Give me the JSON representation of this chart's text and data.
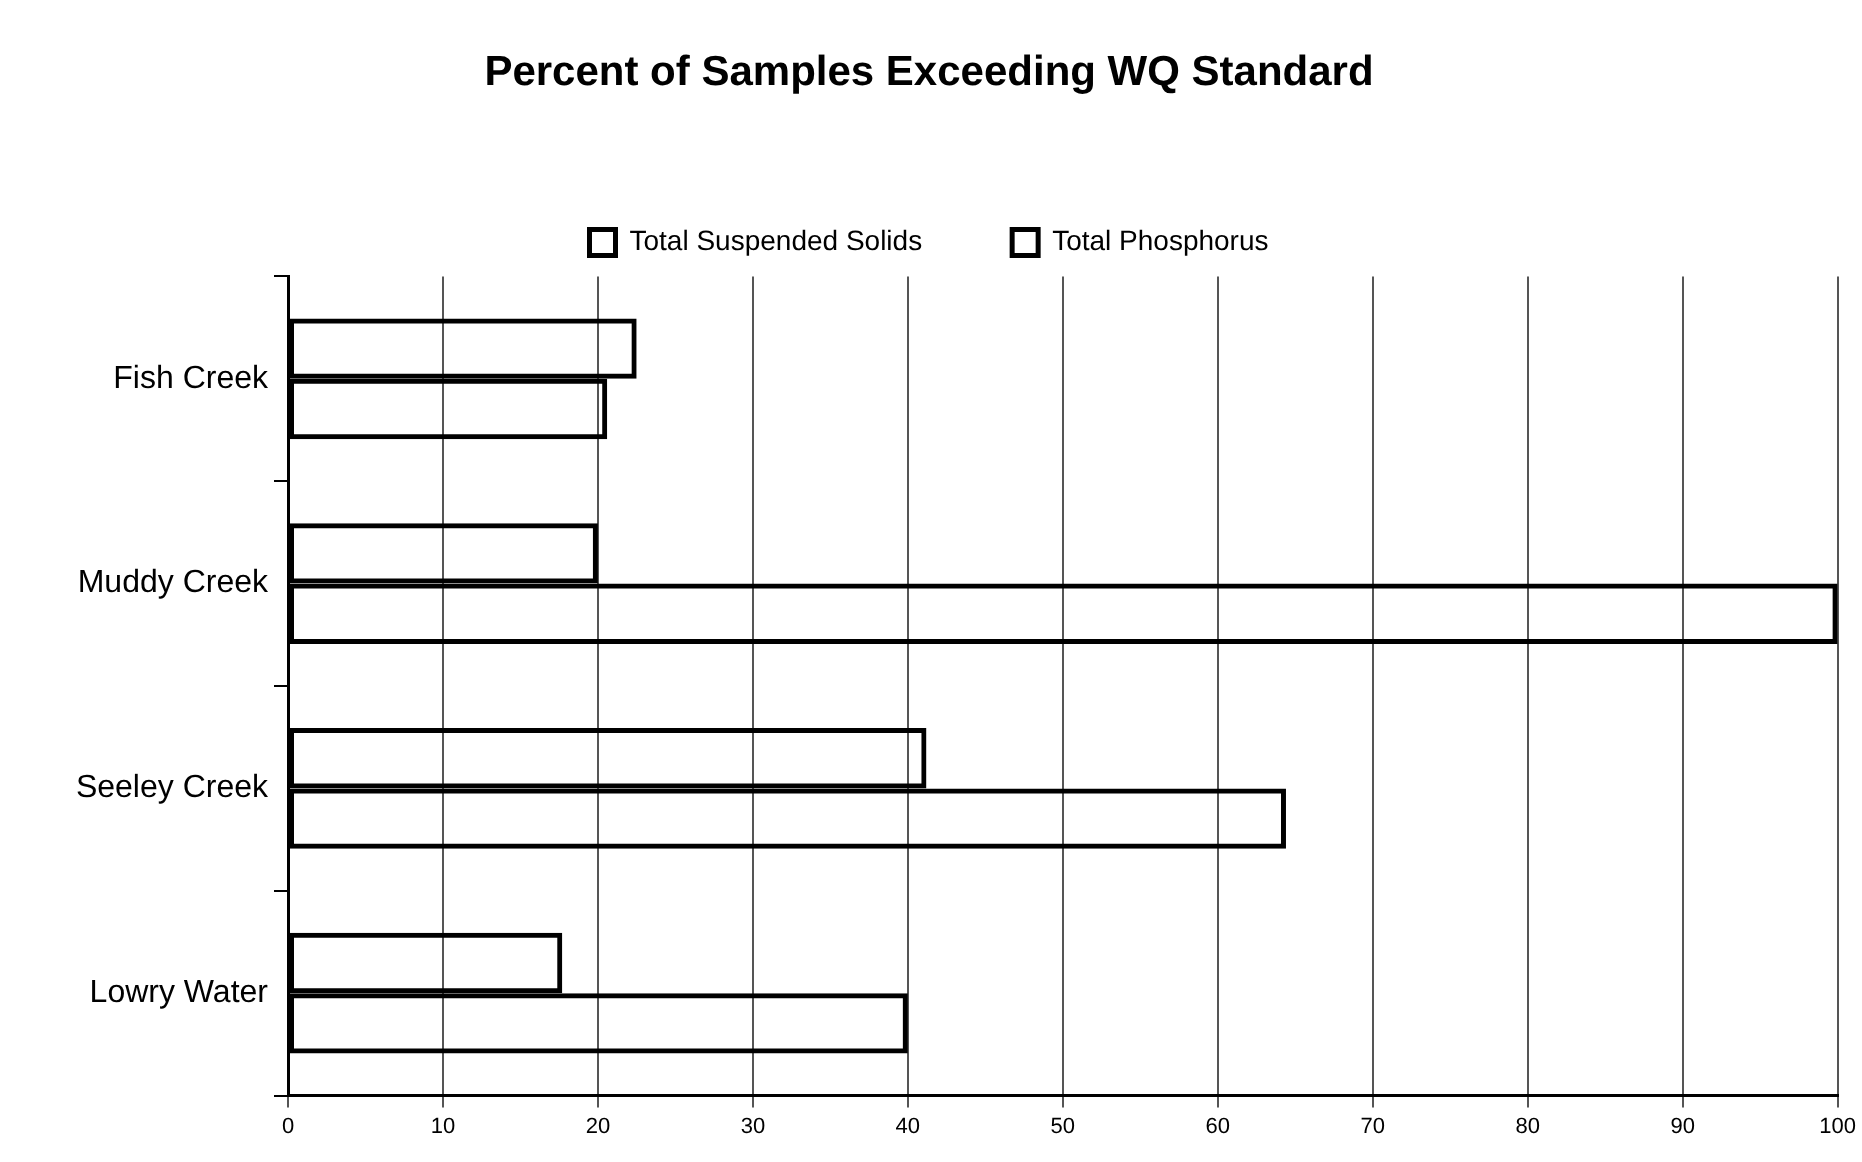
{
  "chart_data": {
    "type": "bar",
    "orientation": "horizontal",
    "title": "Percent of Samples Exceeding WQ Standard",
    "categories": [
      "Fish Creek",
      "Muddy Creek",
      "Seeley Creek",
      "Lowry Water"
    ],
    "series": [
      {
        "name": "Total Suspended Solids",
        "color": "#000000",
        "values": [
          22.5,
          20.0,
          41.2,
          17.7
        ]
      },
      {
        "name": "Total Phosphorus",
        "color": "#000000",
        "values": [
          20.6,
          100,
          64.4,
          40
        ]
      }
    ],
    "xlim": [
      0,
      100
    ],
    "xticks": [
      0,
      10,
      20,
      30,
      40,
      50,
      60,
      70,
      80,
      90,
      100
    ],
    "grid": "x",
    "legend": "top"
  }
}
